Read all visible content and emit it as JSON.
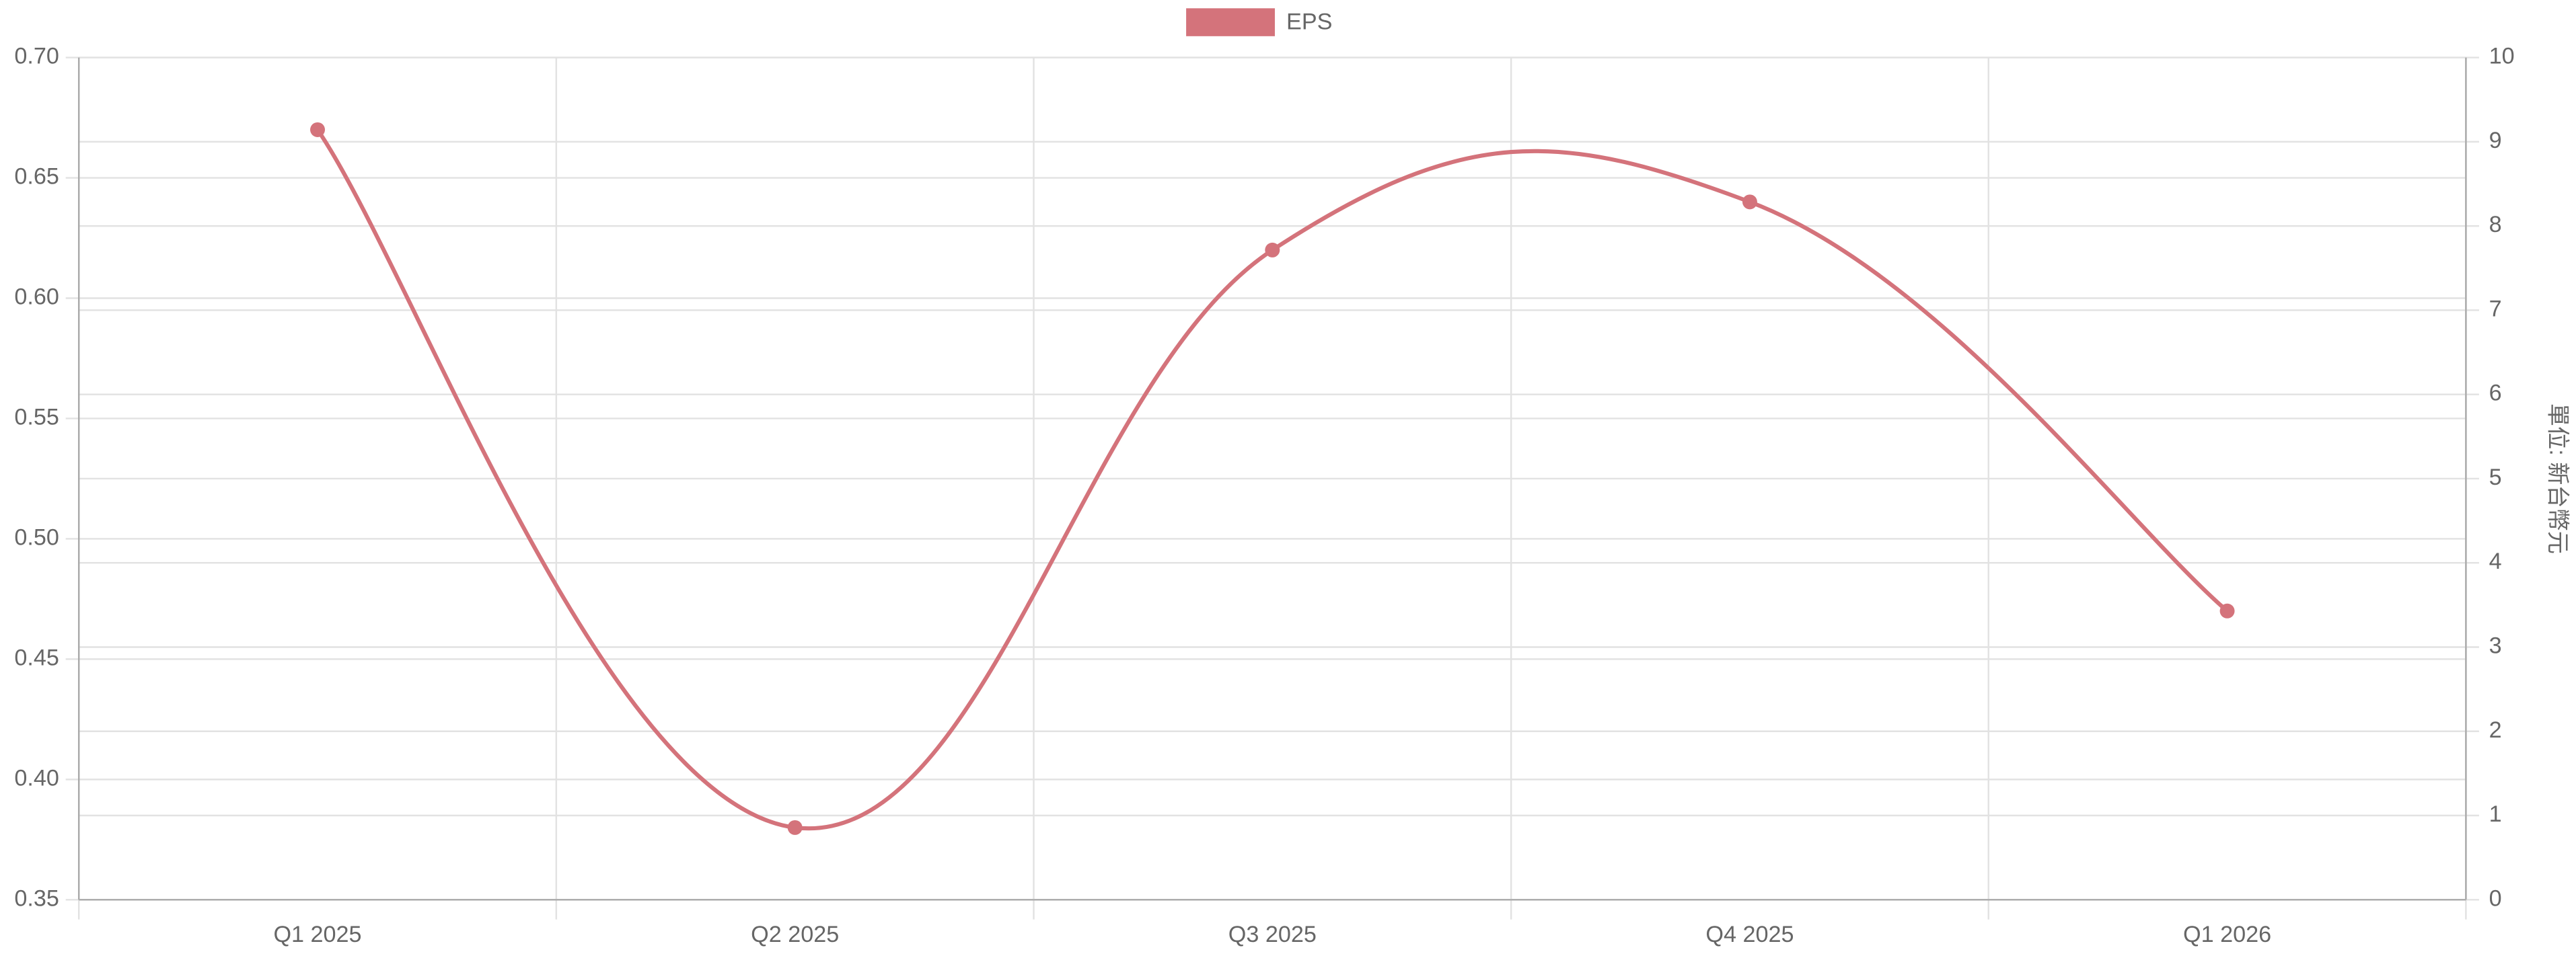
{
  "chart_data": {
    "type": "line",
    "categories": [
      "Q1 2025",
      "Q2 2025",
      "Q3 2025",
      "Q4 2025",
      "Q1 2026"
    ],
    "series": [
      {
        "name": "EPS",
        "color": "#d4737b",
        "values": [
          0.67,
          0.38,
          0.62,
          0.64,
          0.47
        ]
      }
    ],
    "ylim": [
      0.35,
      0.7
    ],
    "yticks": [
      0.35,
      {
        "value": 0.4,
        "label": "0.40"
      },
      0.45,
      {
        "value": 0.5,
        "label": "0.50"
      },
      0.55,
      {
        "value": 0.6,
        "label": "0.60"
      },
      0.65,
      {
        "value": 0.7,
        "label": "0.70"
      }
    ],
    "y2lim": [
      0,
      10
    ],
    "y2ticks": [
      0,
      1,
      2,
      3,
      4,
      5,
      6,
      7,
      8,
      9,
      10
    ],
    "y2label": "單位: 新台幣元",
    "grid": true,
    "legend": "top"
  }
}
